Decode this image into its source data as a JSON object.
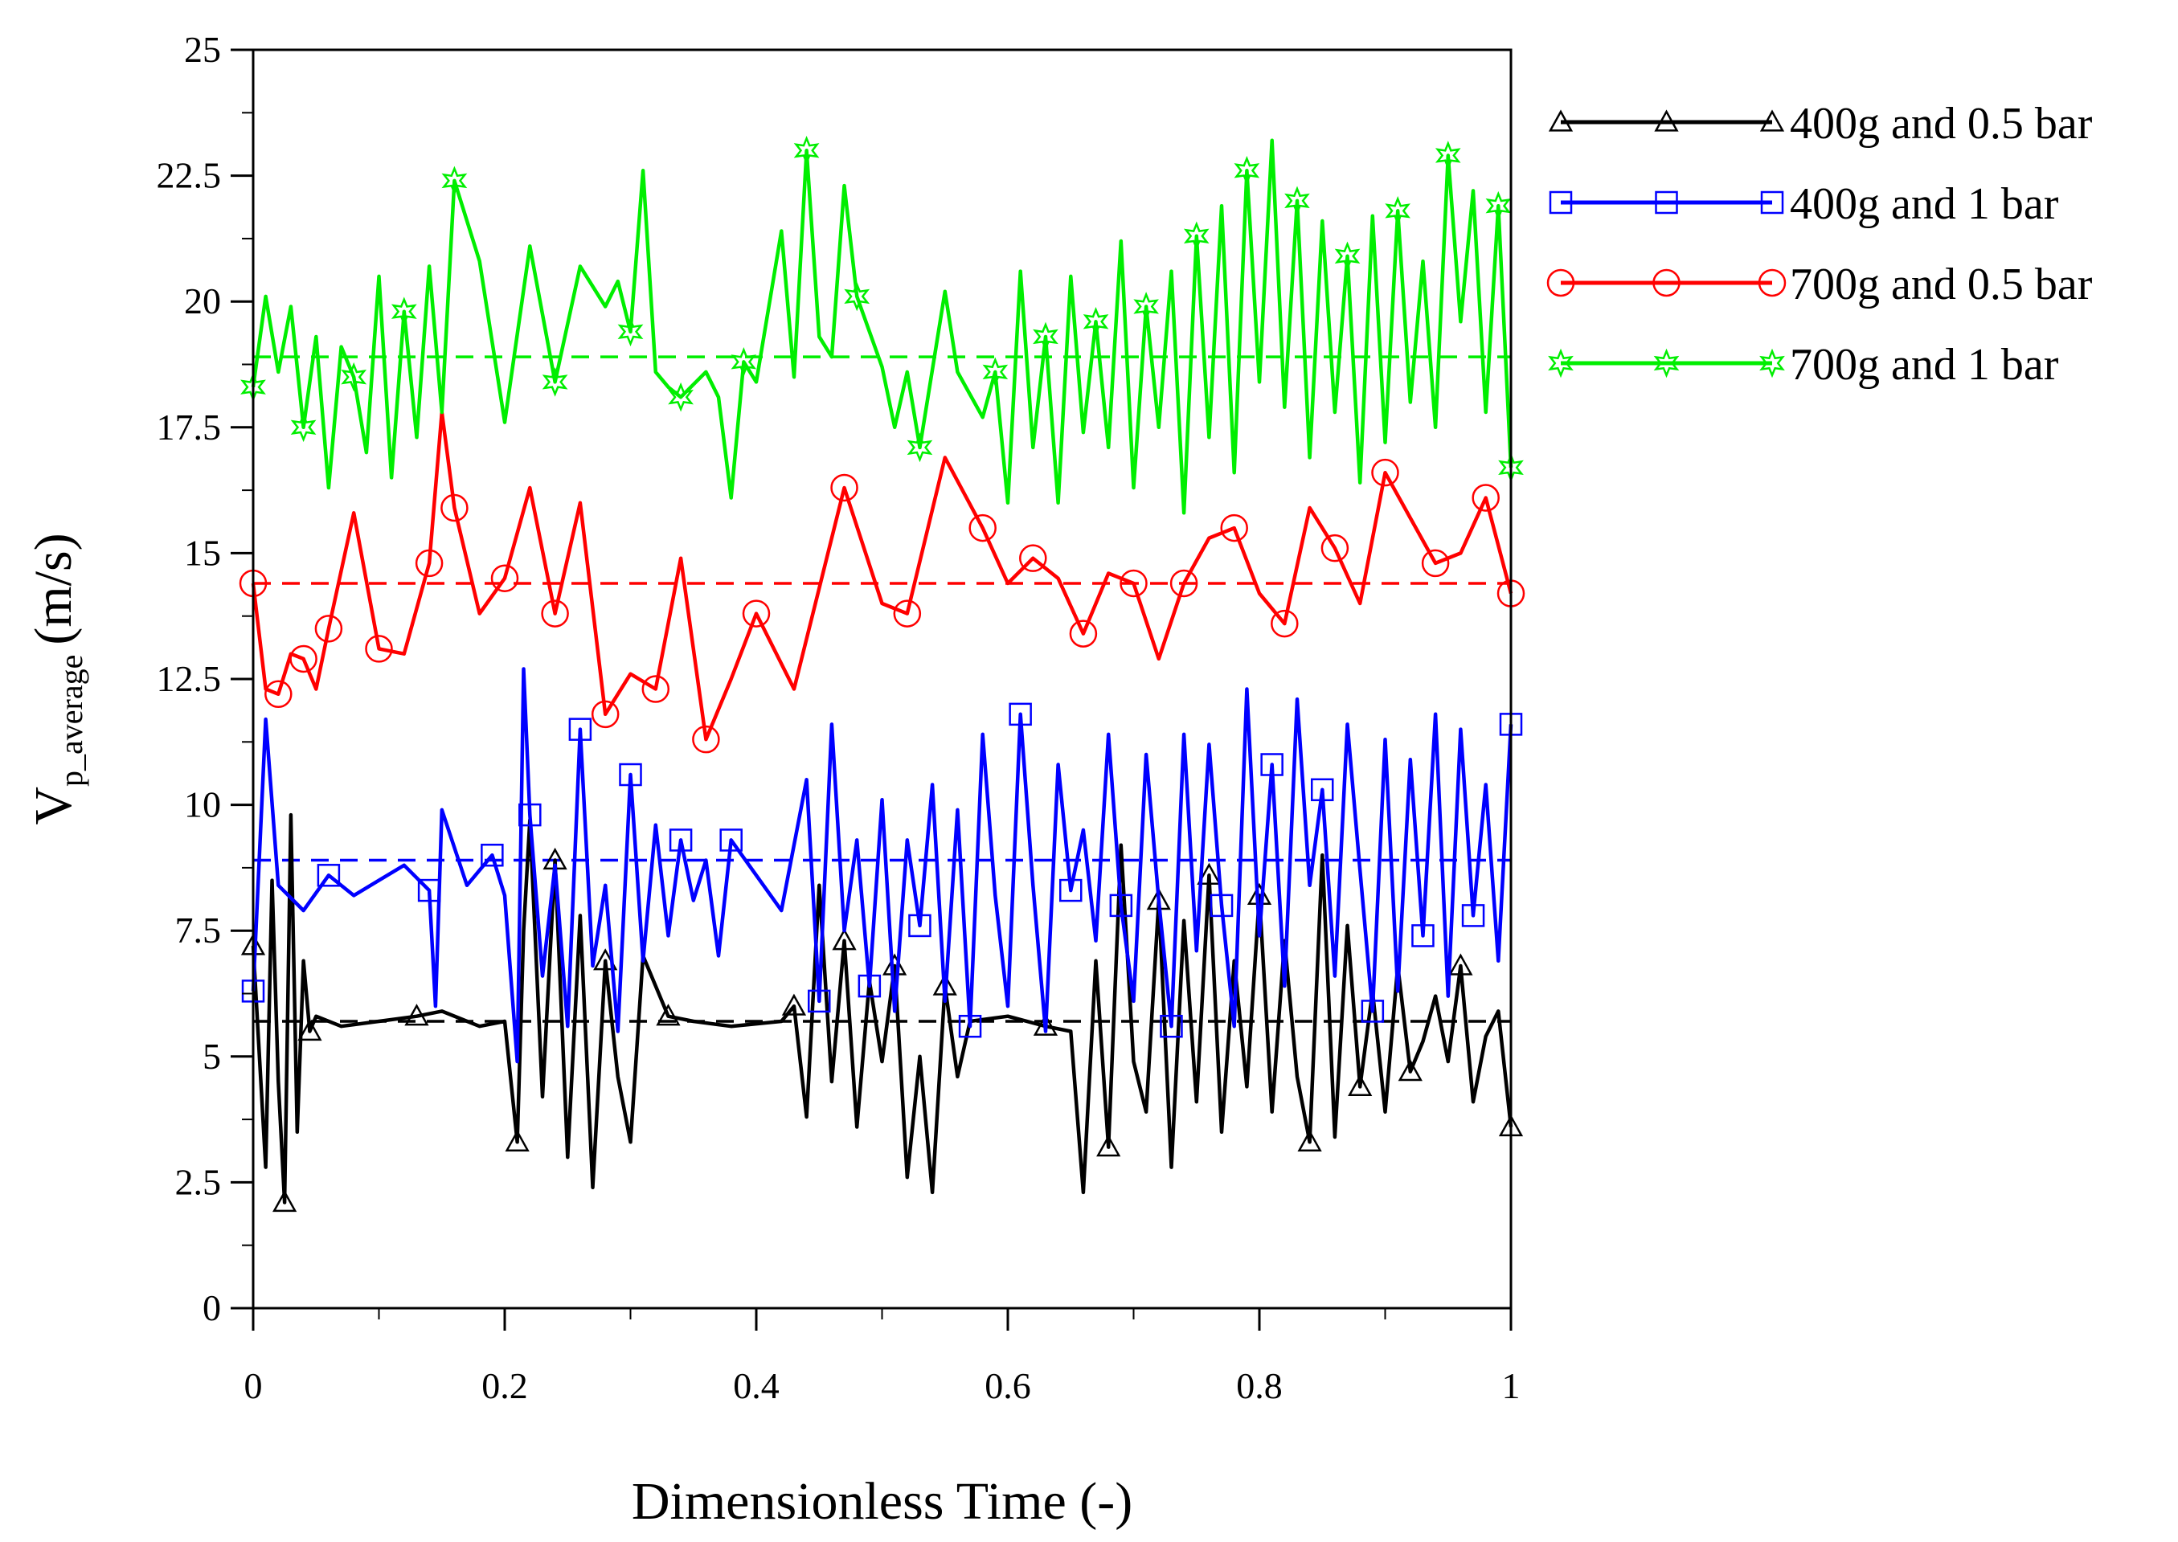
{
  "chart_data": {
    "type": "line",
    "title": "",
    "xlabel": "Dimensionless Time (-)",
    "ylabel_main": "V",
    "ylabel_sub": "p_average",
    "ylabel_unit": "(m/s)",
    "xlim": [
      0,
      1
    ],
    "ylim": [
      0,
      25
    ],
    "x_ticks": [
      0,
      0.2,
      0.4,
      0.6,
      0.8,
      1
    ],
    "x_tick_labels": [
      "0",
      "0.2",
      "0.4",
      "0.6",
      "0.8",
      "1"
    ],
    "y_ticks": [
      0,
      2.5,
      5,
      7.5,
      10,
      12.5,
      15,
      17.5,
      20,
      22.5,
      25
    ],
    "y_tick_labels": [
      "0",
      "2.5",
      "5",
      "7.5",
      "10",
      "12.5",
      "15",
      "17.5",
      "20",
      "22.5",
      "25"
    ],
    "legend_position": "right-outside-top",
    "series": [
      {
        "name": "400g and 0.5 bar",
        "color": "#000000",
        "marker": "triangle",
        "mean": 5.7,
        "x": [
          0,
          0.01,
          0.015,
          0.02,
          0.025,
          0.03,
          0.035,
          0.04,
          0.045,
          0.05,
          0.07,
          0.1,
          0.13,
          0.15,
          0.18,
          0.2,
          0.21,
          0.215,
          0.22,
          0.23,
          0.24,
          0.25,
          0.26,
          0.27,
          0.28,
          0.29,
          0.3,
          0.31,
          0.33,
          0.35,
          0.38,
          0.42,
          0.43,
          0.44,
          0.45,
          0.46,
          0.47,
          0.48,
          0.49,
          0.5,
          0.51,
          0.52,
          0.53,
          0.54,
          0.55,
          0.56,
          0.57,
          0.6,
          0.63,
          0.65,
          0.66,
          0.67,
          0.68,
          0.69,
          0.7,
          0.71,
          0.72,
          0.73,
          0.74,
          0.75,
          0.76,
          0.77,
          0.78,
          0.79,
          0.8,
          0.81,
          0.82,
          0.83,
          0.84,
          0.85,
          0.86,
          0.87,
          0.88,
          0.89,
          0.9,
          0.91,
          0.92,
          0.93,
          0.94,
          0.95,
          0.96,
          0.97,
          0.98,
          0.99,
          1.0
        ],
        "y": [
          7.2,
          2.8,
          8.5,
          4.5,
          2.1,
          9.8,
          3.5,
          6.9,
          5.5,
          5.8,
          5.6,
          5.7,
          5.8,
          5.9,
          5.6,
          5.7,
          3.3,
          7.5,
          9.7,
          4.2,
          8.9,
          3.0,
          7.8,
          2.4,
          6.9,
          4.6,
          3.3,
          7.0,
          5.8,
          5.7,
          5.6,
          5.7,
          6.0,
          3.8,
          8.4,
          4.5,
          7.3,
          3.6,
          6.5,
          4.9,
          6.8,
          2.6,
          5.0,
          2.3,
          6.4,
          4.6,
          5.7,
          5.8,
          5.6,
          5.5,
          2.3,
          6.9,
          3.2,
          9.2,
          4.9,
          3.9,
          8.1,
          2.8,
          7.7,
          4.1,
          8.6,
          3.5,
          6.9,
          4.4,
          8.2,
          3.9,
          7.3,
          4.6,
          3.3,
          9.0,
          3.4,
          7.6,
          4.4,
          6.3,
          3.9,
          6.8,
          4.7,
          5.3,
          6.2,
          4.9,
          6.8,
          4.1,
          5.4,
          5.9,
          3.6
        ]
      },
      {
        "name": "400g and 1 bar",
        "color": "#0000ff",
        "marker": "square",
        "mean": 8.9,
        "x": [
          0,
          0.01,
          0.02,
          0.04,
          0.06,
          0.08,
          0.1,
          0.12,
          0.14,
          0.145,
          0.15,
          0.17,
          0.19,
          0.2,
          0.21,
          0.215,
          0.22,
          0.23,
          0.24,
          0.25,
          0.26,
          0.27,
          0.28,
          0.29,
          0.3,
          0.31,
          0.32,
          0.33,
          0.34,
          0.35,
          0.36,
          0.37,
          0.38,
          0.4,
          0.42,
          0.44,
          0.45,
          0.46,
          0.47,
          0.48,
          0.49,
          0.5,
          0.51,
          0.52,
          0.53,
          0.54,
          0.55,
          0.56,
          0.57,
          0.58,
          0.59,
          0.6,
          0.61,
          0.62,
          0.63,
          0.64,
          0.65,
          0.66,
          0.67,
          0.68,
          0.69,
          0.7,
          0.71,
          0.72,
          0.73,
          0.74,
          0.75,
          0.76,
          0.77,
          0.78,
          0.79,
          0.8,
          0.81,
          0.82,
          0.83,
          0.84,
          0.85,
          0.86,
          0.87,
          0.88,
          0.89,
          0.9,
          0.91,
          0.92,
          0.93,
          0.94,
          0.95,
          0.96,
          0.97,
          0.98,
          0.99,
          1.0
        ],
        "y": [
          6.3,
          11.7,
          8.4,
          7.9,
          8.6,
          8.2,
          8.5,
          8.8,
          8.3,
          6.0,
          9.9,
          8.4,
          9.0,
          8.2,
          4.9,
          12.7,
          9.8,
          6.6,
          8.8,
          5.6,
          11.5,
          6.8,
          8.4,
          5.5,
          10.6,
          6.9,
          9.6,
          7.4,
          9.3,
          8.1,
          8.9,
          7.0,
          9.3,
          8.6,
          7.9,
          10.5,
          6.1,
          11.6,
          7.5,
          9.3,
          6.4,
          10.1,
          5.9,
          9.3,
          7.6,
          10.4,
          6.1,
          9.9,
          5.6,
          11.4,
          8.2,
          6.0,
          11.8,
          8.4,
          5.5,
          10.8,
          8.3,
          9.5,
          7.3,
          11.4,
          8.0,
          6.1,
          11.0,
          8.1,
          5.6,
          11.4,
          7.1,
          11.2,
          8.0,
          5.6,
          12.3,
          7.4,
          10.8,
          6.4,
          12.1,
          8.4,
          10.3,
          6.6,
          11.6,
          8.7,
          5.9,
          11.3,
          6.3,
          10.9,
          7.4,
          11.8,
          6.2,
          11.5,
          7.8,
          10.4,
          6.9,
          11.6
        ]
      },
      {
        "name": "700g and 0.5 bar",
        "color": "#ff0000",
        "marker": "circle",
        "mean": 14.4,
        "x": [
          0,
          0.01,
          0.02,
          0.03,
          0.04,
          0.05,
          0.06,
          0.08,
          0.1,
          0.12,
          0.14,
          0.15,
          0.16,
          0.18,
          0.2,
          0.22,
          0.24,
          0.26,
          0.28,
          0.3,
          0.32,
          0.34,
          0.36,
          0.38,
          0.4,
          0.43,
          0.47,
          0.5,
          0.52,
          0.55,
          0.58,
          0.6,
          0.62,
          0.64,
          0.66,
          0.68,
          0.7,
          0.72,
          0.74,
          0.76,
          0.78,
          0.8,
          0.82,
          0.84,
          0.86,
          0.88,
          0.9,
          0.92,
          0.94,
          0.96,
          0.98,
          1.0
        ],
        "y": [
          14.4,
          12.3,
          12.2,
          13.0,
          12.9,
          12.3,
          13.5,
          15.8,
          13.1,
          13.0,
          14.8,
          17.8,
          15.9,
          13.8,
          14.5,
          16.3,
          13.8,
          16.0,
          11.8,
          12.6,
          12.3,
          14.9,
          11.3,
          12.5,
          13.8,
          12.3,
          16.3,
          14.0,
          13.8,
          16.9,
          15.5,
          14.4,
          14.9,
          14.5,
          13.4,
          14.6,
          14.4,
          12.9,
          14.4,
          15.3,
          15.5,
          14.2,
          13.6,
          15.9,
          15.1,
          14.0,
          16.6,
          15.7,
          14.8,
          15.0,
          16.1,
          14.2
        ]
      },
      {
        "name": "700g and 1 bar",
        "color": "#00ee00",
        "marker": "star",
        "mean": 18.9,
        "x": [
          0,
          0.01,
          0.02,
          0.03,
          0.04,
          0.05,
          0.06,
          0.07,
          0.08,
          0.09,
          0.1,
          0.11,
          0.12,
          0.13,
          0.14,
          0.15,
          0.16,
          0.18,
          0.2,
          0.22,
          0.24,
          0.26,
          0.28,
          0.29,
          0.3,
          0.31,
          0.32,
          0.33,
          0.34,
          0.36,
          0.37,
          0.38,
          0.39,
          0.4,
          0.42,
          0.43,
          0.44,
          0.45,
          0.46,
          0.47,
          0.48,
          0.5,
          0.51,
          0.52,
          0.53,
          0.55,
          0.56,
          0.58,
          0.59,
          0.6,
          0.61,
          0.62,
          0.63,
          0.64,
          0.65,
          0.66,
          0.67,
          0.68,
          0.69,
          0.7,
          0.71,
          0.72,
          0.73,
          0.74,
          0.75,
          0.76,
          0.77,
          0.78,
          0.79,
          0.8,
          0.81,
          0.82,
          0.83,
          0.84,
          0.85,
          0.86,
          0.87,
          0.88,
          0.89,
          0.9,
          0.91,
          0.92,
          0.93,
          0.94,
          0.95,
          0.96,
          0.97,
          0.98,
          0.99,
          1.0
        ],
        "y": [
          18.3,
          20.1,
          18.6,
          19.9,
          17.5,
          19.3,
          16.3,
          19.1,
          18.5,
          17.0,
          20.5,
          16.5,
          19.8,
          17.3,
          20.7,
          17.8,
          22.4,
          20.8,
          17.6,
          21.1,
          18.4,
          20.7,
          19.9,
          20.4,
          19.4,
          22.6,
          18.6,
          18.3,
          18.1,
          18.6,
          18.1,
          16.1,
          18.8,
          18.4,
          21.4,
          18.5,
          23.0,
          19.3,
          18.9,
          22.3,
          20.1,
          18.7,
          17.5,
          18.6,
          17.1,
          20.2,
          18.6,
          17.7,
          18.6,
          16.0,
          20.6,
          17.1,
          19.3,
          16.0,
          20.5,
          17.4,
          19.6,
          17.1,
          21.2,
          16.3,
          19.9,
          17.5,
          20.6,
          15.8,
          21.3,
          17.3,
          21.9,
          16.6,
          22.6,
          18.4,
          23.2,
          17.9,
          22.0,
          16.9,
          21.6,
          17.8,
          20.9,
          16.4,
          21.7,
          17.2,
          21.8,
          18.0,
          20.8,
          17.5,
          22.9,
          19.6,
          22.2,
          17.8,
          21.9,
          16.7
        ]
      }
    ]
  }
}
